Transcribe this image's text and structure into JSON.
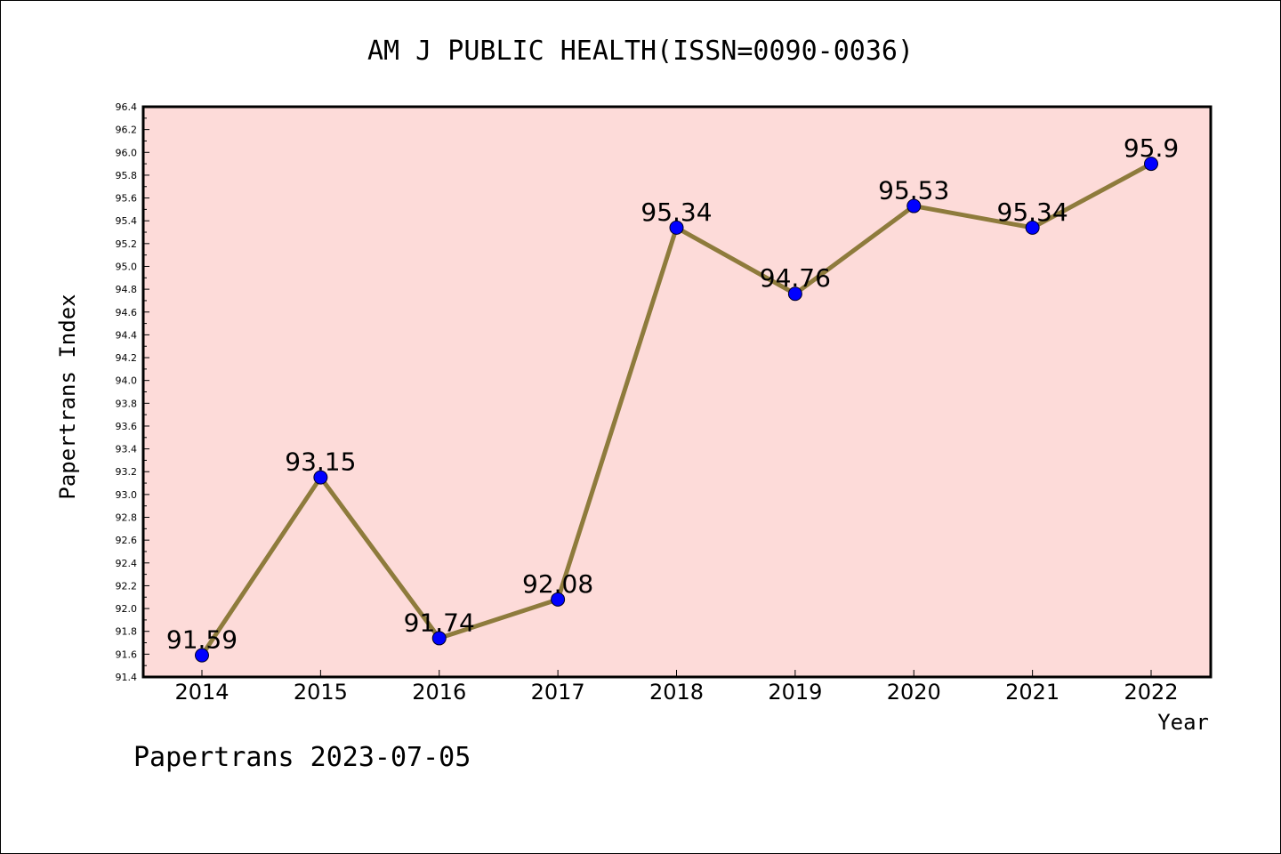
{
  "chart_data": {
    "type": "line",
    "title": "AM J PUBLIC HEALTH(ISSN=0090-0036)",
    "xlabel": "Year",
    "ylabel": "Papertrans Index",
    "categories": [
      "2014",
      "2015",
      "2016",
      "2017",
      "2018",
      "2019",
      "2020",
      "2021",
      "2022"
    ],
    "series": [
      {
        "values": [
          91.59,
          93.15,
          91.74,
          92.08,
          95.34,
          94.76,
          95.53,
          95.34,
          95.9
        ],
        "data_labels": [
          "91.59",
          "93.15",
          "91.74",
          "92.08",
          "95.34",
          "94.76",
          "95.53",
          "95.34",
          "95.9"
        ]
      }
    ],
    "ylim": [
      91.4,
      96.4
    ],
    "y_ticks": [
      "91.4",
      "91.6",
      "91.8",
      "92.0",
      "92.2",
      "92.4",
      "92.6",
      "92.8",
      "93.0",
      "93.2",
      "93.4",
      "93.6",
      "93.8",
      "94.0",
      "94.2",
      "94.4",
      "94.6",
      "94.8",
      "95.0",
      "95.2",
      "95.4",
      "95.6",
      "95.8",
      "96.0",
      "96.2",
      "96.4"
    ],
    "grid": false,
    "colors": {
      "plot_background": "#fddbd9",
      "line": "#8e7b3c",
      "marker": "#0000ff"
    }
  },
  "footer": "Papertrans 2023-07-05"
}
